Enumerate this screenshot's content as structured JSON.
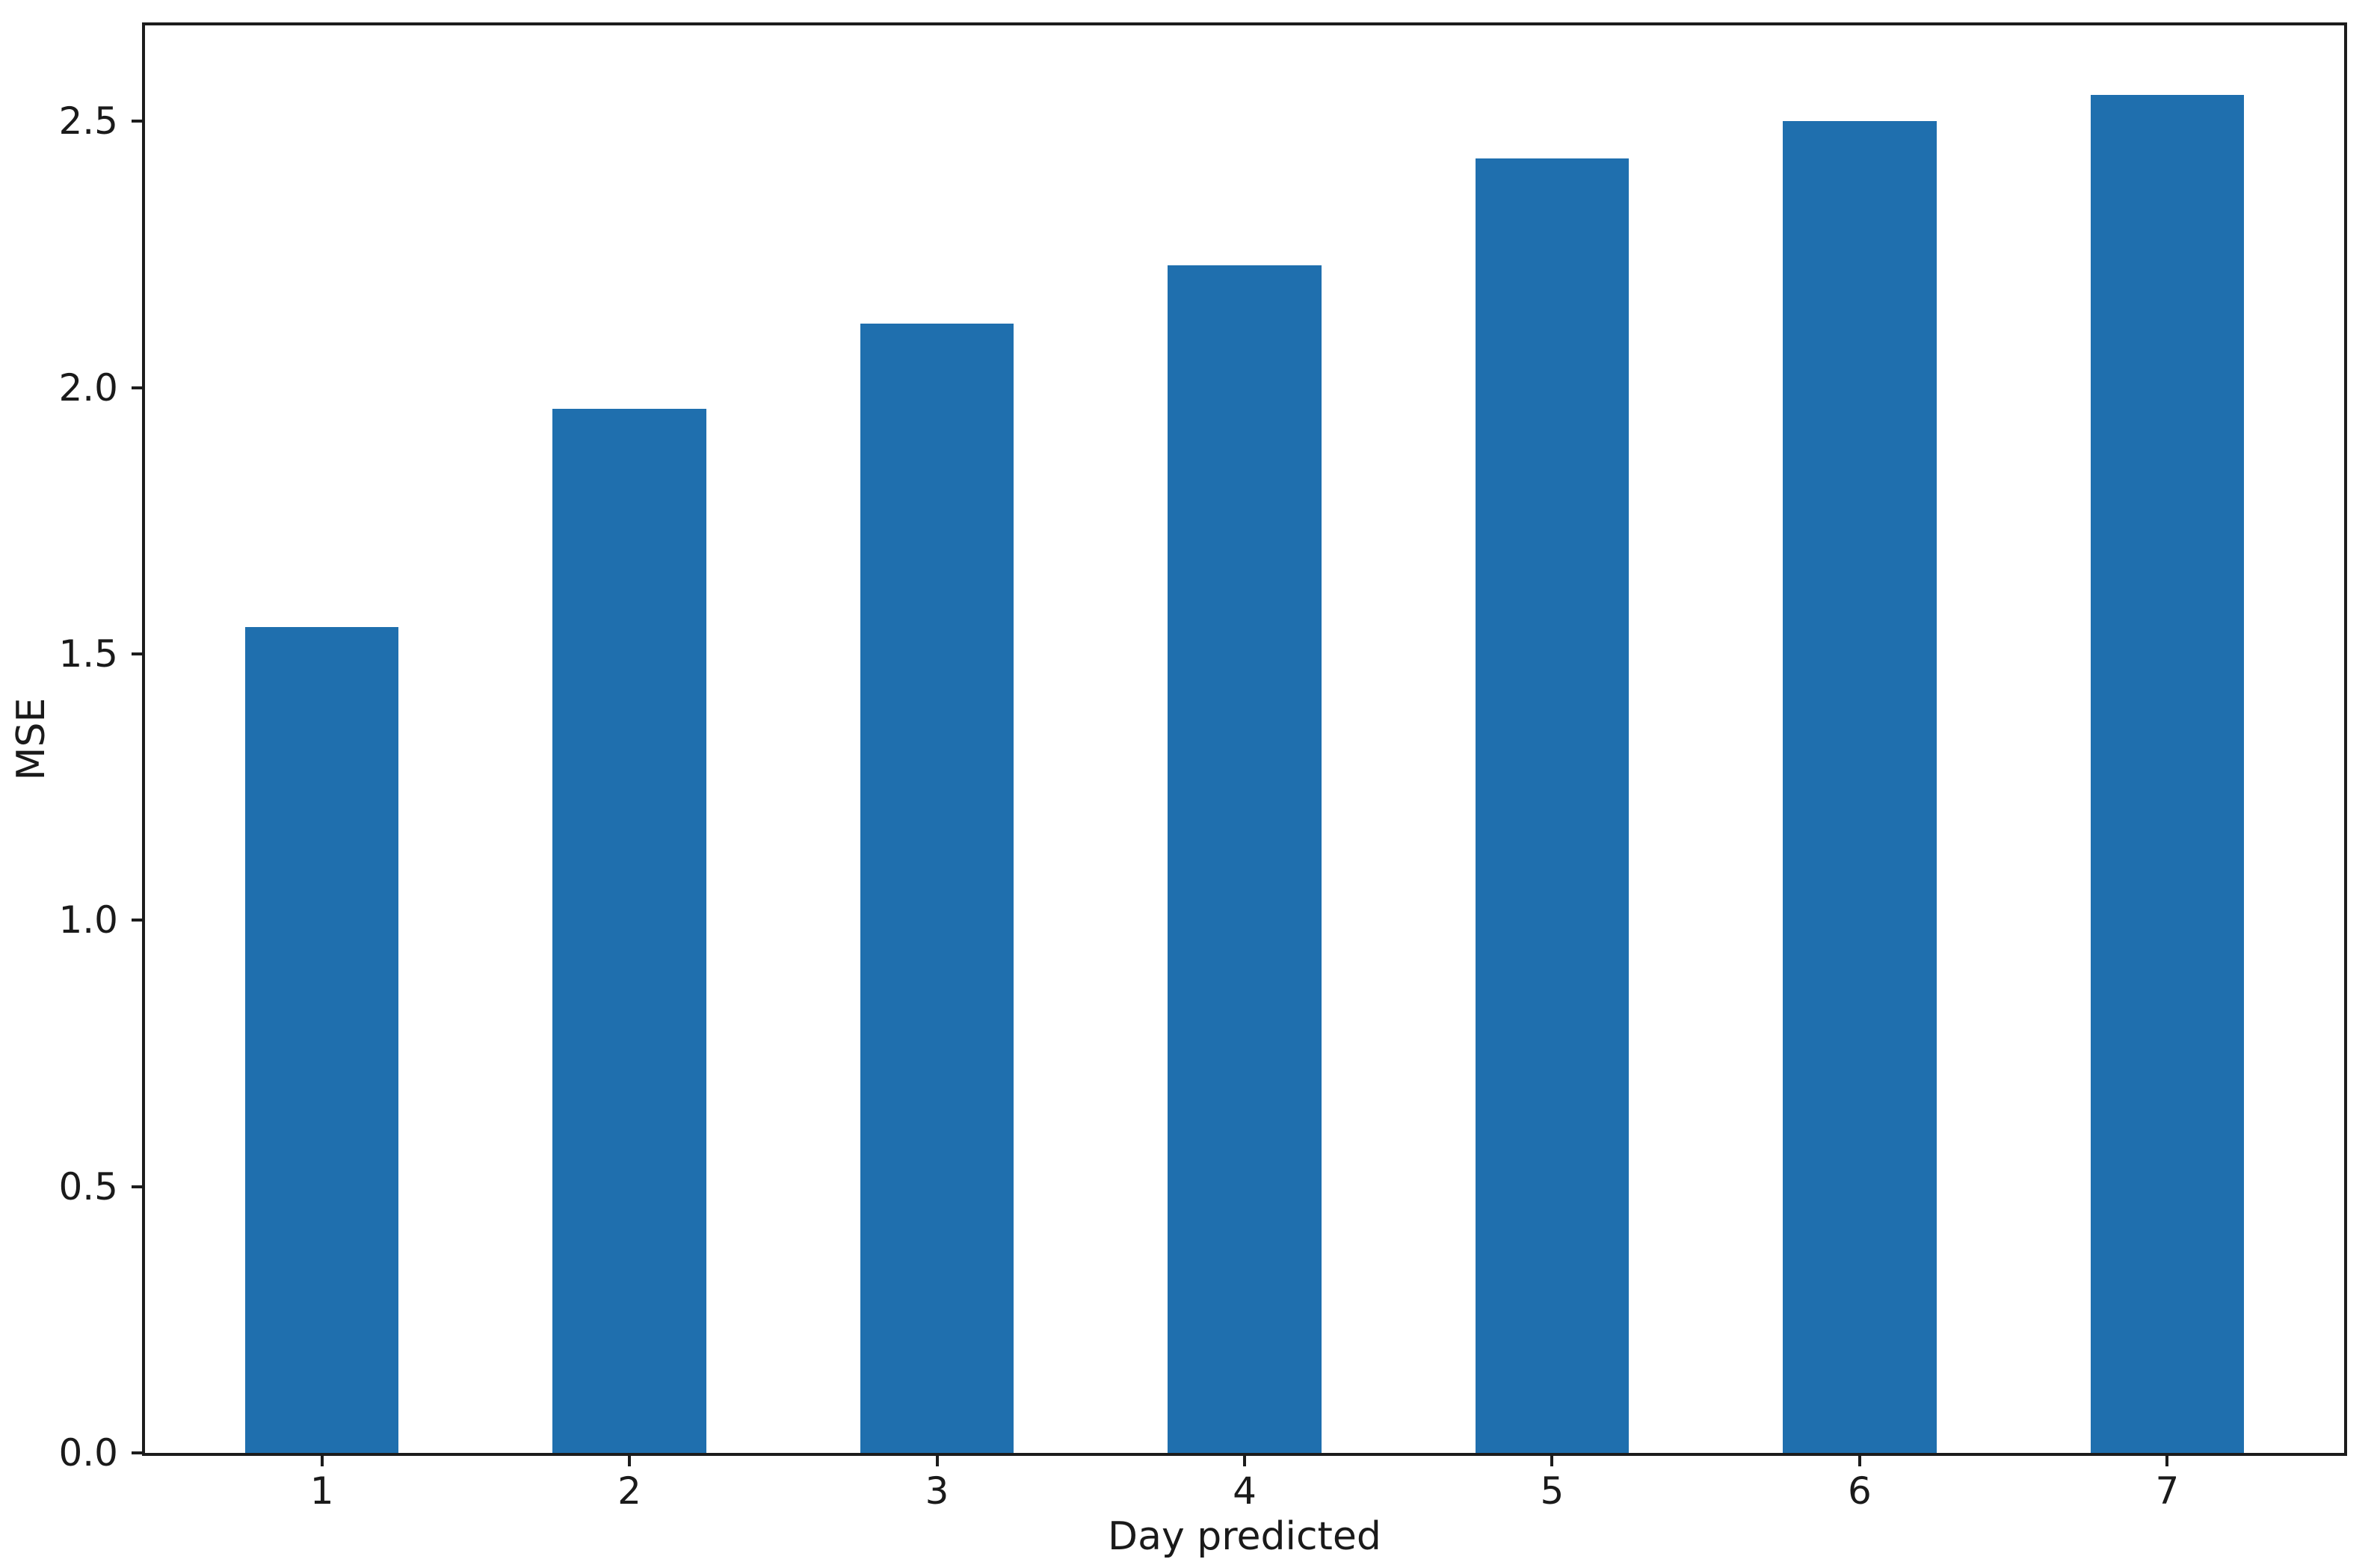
{
  "figure": {
    "background": "#ffffff",
    "spine_color": "#1c1c1c",
    "text_color": "#1a1a1a"
  },
  "chart_data": {
    "type": "bar",
    "title": "",
    "xlabel": "Day predicted",
    "ylabel": "MSE",
    "categories": [
      "1",
      "2",
      "3",
      "4",
      "5",
      "6",
      "7"
    ],
    "values": [
      1.55,
      1.96,
      2.12,
      2.23,
      2.43,
      2.5,
      2.55
    ],
    "series": [
      {
        "name": "MSE",
        "values": [
          1.55,
          1.96,
          2.12,
          2.23,
          2.43,
          2.5,
          2.55
        ]
      }
    ],
    "bar_color": "#1f6fae",
    "yticks": [
      0.0,
      0.5,
      1.0,
      1.5,
      2.0,
      2.5
    ],
    "ytick_labels": [
      "0.0",
      "0.5",
      "1.0",
      "1.5",
      "2.0",
      "2.5"
    ],
    "ylim": [
      0,
      2.68
    ],
    "xlim": [
      -0.575,
      6.575
    ],
    "bar_width_units": 0.5,
    "grid": false,
    "legend": null
  }
}
